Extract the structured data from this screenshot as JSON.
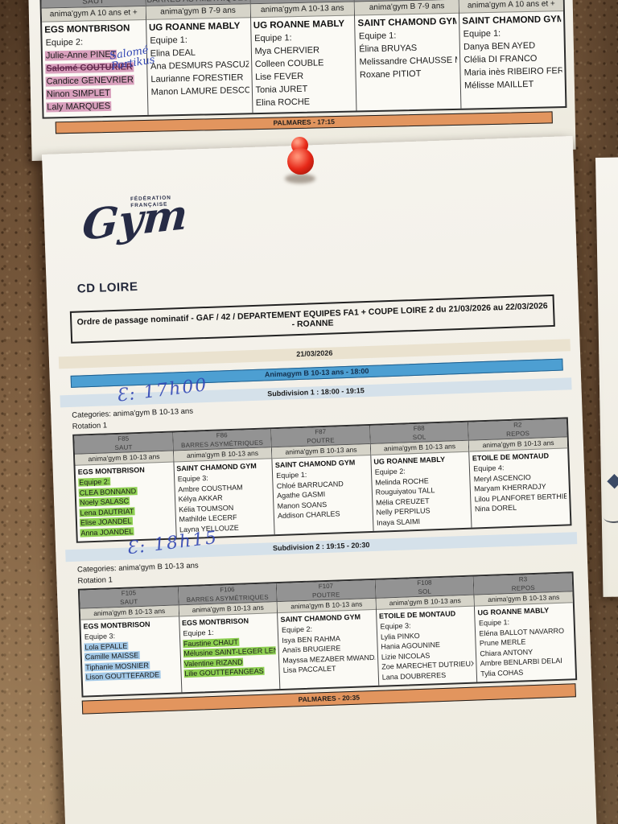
{
  "colors": {
    "highlight_green": "#8ed052",
    "highlight_blue": "#a3c9e8",
    "highlight_pink": "#d9a0bd",
    "orange_bar": "#e2955e",
    "session_blue": "#4d9fd2",
    "subdivision_blue": "#d5e1ea",
    "date_tan": "#eae2cf",
    "header_gray": "#939393",
    "ink_blue": "#3247b4",
    "pin_red": "#e62818",
    "paper": "#f4f1e9",
    "cork": "#7d5d3f"
  },
  "top_sheet": {
    "palmares_label": "PALMARES - 17:15",
    "annotation": {
      "line1": "Salomé",
      "line2": "Portikus"
    },
    "table": {
      "columns": [
        {
          "code": "",
          "apparatus": "SAUT",
          "category": "anima'gym A 10 ans et +",
          "club": "EGS MONTBRISON",
          "team": {
            "label": "Equipe 2:",
            "highlight": null
          },
          "gymnasts": [
            {
              "name": "Julie-Anne PINET",
              "highlight": "pink"
            },
            {
              "name": "Salomé COUTURIER",
              "highlight": "pink",
              "struck": true
            },
            {
              "name": "Candice GENEVRIER",
              "highlight": "pink"
            },
            {
              "name": "Ninon SIMPLET",
              "highlight": "pink"
            },
            {
              "name": "Laly MARQUES",
              "highlight": "pink"
            }
          ]
        },
        {
          "code": "",
          "apparatus": "BARRES ASYMÉTRIQUES",
          "category": "anima'gym B 7-9 ans",
          "club": "UG ROANNE MABLY",
          "team": {
            "label": "Equipe 1:",
            "highlight": null
          },
          "gymnasts": [
            {
              "name": "Elina DEAL"
            },
            {
              "name": "Ana DESMURS PASCUZZI"
            },
            {
              "name": "Laurianne FORESTIER"
            },
            {
              "name": "Manon LAMURE DESCOMBES"
            }
          ]
        },
        {
          "code": "",
          "apparatus": "POUTRE",
          "category": "anima'gym A 10-13 ans",
          "club": "UG ROANNE MABLY",
          "team": {
            "label": "Equipe 1:",
            "highlight": null
          },
          "gymnasts": [
            {
              "name": "Mya CHERVIER"
            },
            {
              "name": "Colleen COUBLE"
            },
            {
              "name": "Lise FEVER"
            },
            {
              "name": "Tonia JURET"
            },
            {
              "name": "Elina ROCHE"
            }
          ]
        },
        {
          "code": "",
          "apparatus": "SOL",
          "category": "anima'gym B 7-9 ans",
          "club": "SAINT CHAMOND GYM",
          "team": {
            "label": "Equipe 1:",
            "highlight": null
          },
          "gymnasts": [
            {
              "name": "Élina BRUYAS"
            },
            {
              "name": "Melissandre CHAUSSE MONDAMEY"
            },
            {
              "name": "Roxane PITIOT"
            }
          ]
        },
        {
          "code": "",
          "apparatus": "REPOS",
          "category": "anima'gym A 10 ans et +",
          "club": "SAINT CHAMOND GYM",
          "team": {
            "label": "Equipe 1:",
            "highlight": null
          },
          "gymnasts": [
            {
              "name": "Danya BEN AYED"
            },
            {
              "name": "Clélia DI FRANCO"
            },
            {
              "name": "Maria inès RIBEIRO FERNANDES"
            },
            {
              "name": "Mélisse MAILLET"
            }
          ]
        }
      ]
    }
  },
  "main_sheet": {
    "logo": {
      "federation_line1": "FÉDÉRATION",
      "federation_line2": "FRANÇAISE",
      "wordmark": "Gym"
    },
    "committee": "CD LOIRE",
    "title": "Ordre de passage nominatif - GAF / 42 / DEPARTEMENT EQUIPES FA1 + COUPE LOIRE 2 du 21/03/2026 au 22/03/2026 - ROANNE",
    "date": "21/03/2026",
    "session_bar": "Animagym B 10-13 ans - 18:00",
    "palmares_label": "PALMARES - 20:35",
    "subdivisions": [
      {
        "label": "Subdivision 1 : 18:00 - 19:15",
        "annotation": "Ɛ: 17h00",
        "categories": "Categories: anima'gym B 10-13 ans",
        "rotation": "Rotation 1",
        "table": {
          "columns": [
            {
              "code": "F85",
              "apparatus": "SAUT",
              "category": "anima'gym B 10-13 ans",
              "club": "EGS MONTBRISON",
              "team": {
                "label": "Equipe 2:",
                "highlight": "green"
              },
              "gymnasts": [
                {
                  "name": "CLEA BONNAND",
                  "highlight": "green"
                },
                {
                  "name": "Noely SALASC",
                  "highlight": "green"
                },
                {
                  "name": "Lena DAUTRIAT",
                  "highlight": "green"
                },
                {
                  "name": "Elise JOANDEL",
                  "highlight": "green"
                },
                {
                  "name": "Anna JOANDEL",
                  "highlight": "green"
                }
              ]
            },
            {
              "code": "F86",
              "apparatus": "BARRES ASYMÉTRIQUES",
              "category": "anima'gym B 10-13 ans",
              "club": "SAINT CHAMOND GYM",
              "team": {
                "label": "Equipe 3:",
                "highlight": null
              },
              "gymnasts": [
                {
                  "name": "Ambre COUSTHAM"
                },
                {
                  "name": "Kélya AKKAR"
                },
                {
                  "name": "Kélia TOUMSON"
                },
                {
                  "name": "Mathilde LECERF"
                },
                {
                  "name": "Layna YELLOUZE"
                }
              ]
            },
            {
              "code": "F87",
              "apparatus": "POUTRE",
              "category": "anima'gym B 10-13 ans",
              "club": "SAINT CHAMOND GYM",
              "team": {
                "label": "Equipe 1:",
                "highlight": null
              },
              "gymnasts": [
                {
                  "name": "Chloé BARRUCAND"
                },
                {
                  "name": "Agathe GASMI"
                },
                {
                  "name": "Manon SOANS"
                },
                {
                  "name": "Addison CHARLES"
                }
              ]
            },
            {
              "code": "F88",
              "apparatus": "SOL",
              "category": "anima'gym B 10-13 ans",
              "club": "UG ROANNE MABLY",
              "team": {
                "label": "Equipe 2:",
                "highlight": null
              },
              "gymnasts": [
                {
                  "name": "Melinda ROCHE"
                },
                {
                  "name": "Rouguiyatou TALL"
                },
                {
                  "name": "Mélia CREUZET"
                },
                {
                  "name": "Nelly PERPILUS"
                },
                {
                  "name": "Inaya SLAIMI"
                }
              ]
            },
            {
              "code": "R2",
              "apparatus": "REPOS",
              "category": "anima'gym B 10-13 ans",
              "club": "ETOILE DE MONTAUD",
              "team": {
                "label": "Equipe 4:",
                "highlight": null
              },
              "gymnasts": [
                {
                  "name": "Meryl ASCENCIO"
                },
                {
                  "name": "Maryam KHERRADJY"
                },
                {
                  "name": "Lilou PLANFORET BERTHIER"
                },
                {
                  "name": "Nina DOREL"
                }
              ]
            }
          ]
        }
      },
      {
        "label": "Subdivision 2 : 19:15 - 20:30",
        "annotation": "Ɛ: 18h15",
        "categories": "Categories: anima'gym B 10-13 ans",
        "rotation": "Rotation 1",
        "table": {
          "columns": [
            {
              "code": "F105",
              "apparatus": "SAUT",
              "category": "anima'gym B 10-13 ans",
              "club": "EGS MONTBRISON",
              "team": {
                "label": "Equipe 3:",
                "highlight": null
              },
              "gymnasts": [
                {
                  "name": "Lola EPALLE",
                  "highlight": "blue"
                },
                {
                  "name": "Camille MAISSE",
                  "highlight": "blue"
                },
                {
                  "name": "Tiphanie MOSNIER",
                  "highlight": "blue"
                },
                {
                  "name": "Lison GOUTTEFARDE",
                  "highlight": "blue"
                }
              ]
            },
            {
              "code": "F106",
              "apparatus": "BARRES ASYMÉTRIQUES",
              "category": "anima'gym B 10-13 ans",
              "club": "EGS MONTBRISON",
              "team": {
                "label": "Equipe 1:",
                "highlight": null
              },
              "gymnasts": [
                {
                  "name": "Faustine CHAUT",
                  "highlight": "green"
                },
                {
                  "name": "Mélusine SAINT-LEGER LENTZ",
                  "highlight": "green"
                },
                {
                  "name": "Valentine RIZAND",
                  "highlight": "green"
                },
                {
                  "name": "Lilie GOUTTEFANGEAS",
                  "highlight": "green"
                }
              ]
            },
            {
              "code": "F107",
              "apparatus": "POUTRE",
              "category": "anima'gym B 10-13 ans",
              "club": "SAINT CHAMOND GYM",
              "team": {
                "label": "Equipe 2:",
                "highlight": null
              },
              "gymnasts": [
                {
                  "name": "Isya BEN RAHMA"
                },
                {
                  "name": "Anaïs BRUGIERE"
                },
                {
                  "name": "Mayssa MEZABER MWANDA"
                },
                {
                  "name": "Lisa PACCALET"
                }
              ]
            },
            {
              "code": "F108",
              "apparatus": "SOL",
              "category": "anima'gym B 10-13 ans",
              "club": "ETOILE DE MONTAUD",
              "team": {
                "label": "Equipe 3:",
                "highlight": null
              },
              "gymnasts": [
                {
                  "name": "Lylia PINKO"
                },
                {
                  "name": "Hania AGOUNINE"
                },
                {
                  "name": "Lizie NICOLAS"
                },
                {
                  "name": "Zoe MARECHET DUTRIEUX"
                },
                {
                  "name": "Lana DOUBRERES"
                }
              ]
            },
            {
              "code": "R3",
              "apparatus": "REPOS",
              "category": "anima'gym B 10-13 ans",
              "club": "UG ROANNE MABLY",
              "team": {
                "label": "Equipe 1:",
                "highlight": null
              },
              "gymnasts": [
                {
                  "name": "Eléna BALLOT NAVARRO"
                },
                {
                  "name": "Prune MERLE"
                },
                {
                  "name": "Chiara ANTONY"
                },
                {
                  "name": "Ambre BENLARBI DELAI"
                },
                {
                  "name": "Tylia COHAS"
                }
              ]
            }
          ]
        }
      }
    ]
  }
}
